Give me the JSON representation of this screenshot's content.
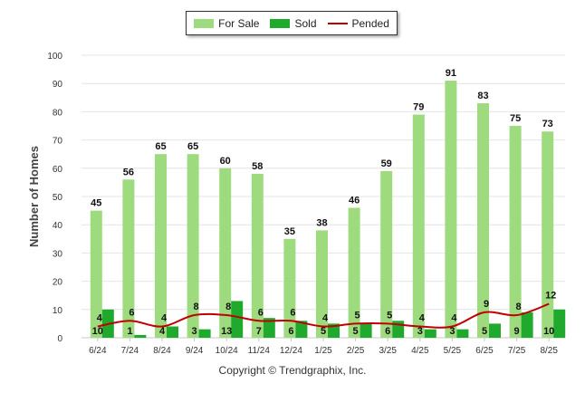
{
  "chart_data": {
    "type": "bar",
    "categories": [
      "6/24",
      "7/24",
      "8/24",
      "9/24",
      "10/24",
      "11/24",
      "12/24",
      "1/25",
      "2/25",
      "3/25",
      "4/25",
      "5/25",
      "6/25",
      "7/25",
      "8/25"
    ],
    "series": [
      {
        "name": "For Sale",
        "kind": "bar",
        "color": "#9ddb7e",
        "values": [
          45,
          56,
          65,
          65,
          60,
          58,
          35,
          38,
          46,
          59,
          79,
          91,
          83,
          75,
          73
        ]
      },
      {
        "name": "Sold",
        "kind": "bar",
        "color": "#1faa2e",
        "values": [
          10,
          1,
          4,
          3,
          13,
          7,
          6,
          5,
          5,
          6,
          3,
          3,
          5,
          9,
          10
        ]
      },
      {
        "name": "Pended",
        "kind": "line",
        "color": "#c00000",
        "values": [
          4,
          6,
          4,
          8,
          8,
          6,
          6,
          4,
          5,
          5,
          4,
          4,
          9,
          8,
          12
        ]
      }
    ],
    "ylabel": "Number of Homes",
    "xlabel": "",
    "ylim": [
      0,
      100
    ],
    "yticks": [
      0,
      10,
      20,
      30,
      40,
      50,
      60,
      70,
      80,
      90,
      100
    ],
    "grid": true,
    "legend": "top"
  },
  "footer": {
    "copyright": "Copyright © Trendgraphix, Inc."
  }
}
